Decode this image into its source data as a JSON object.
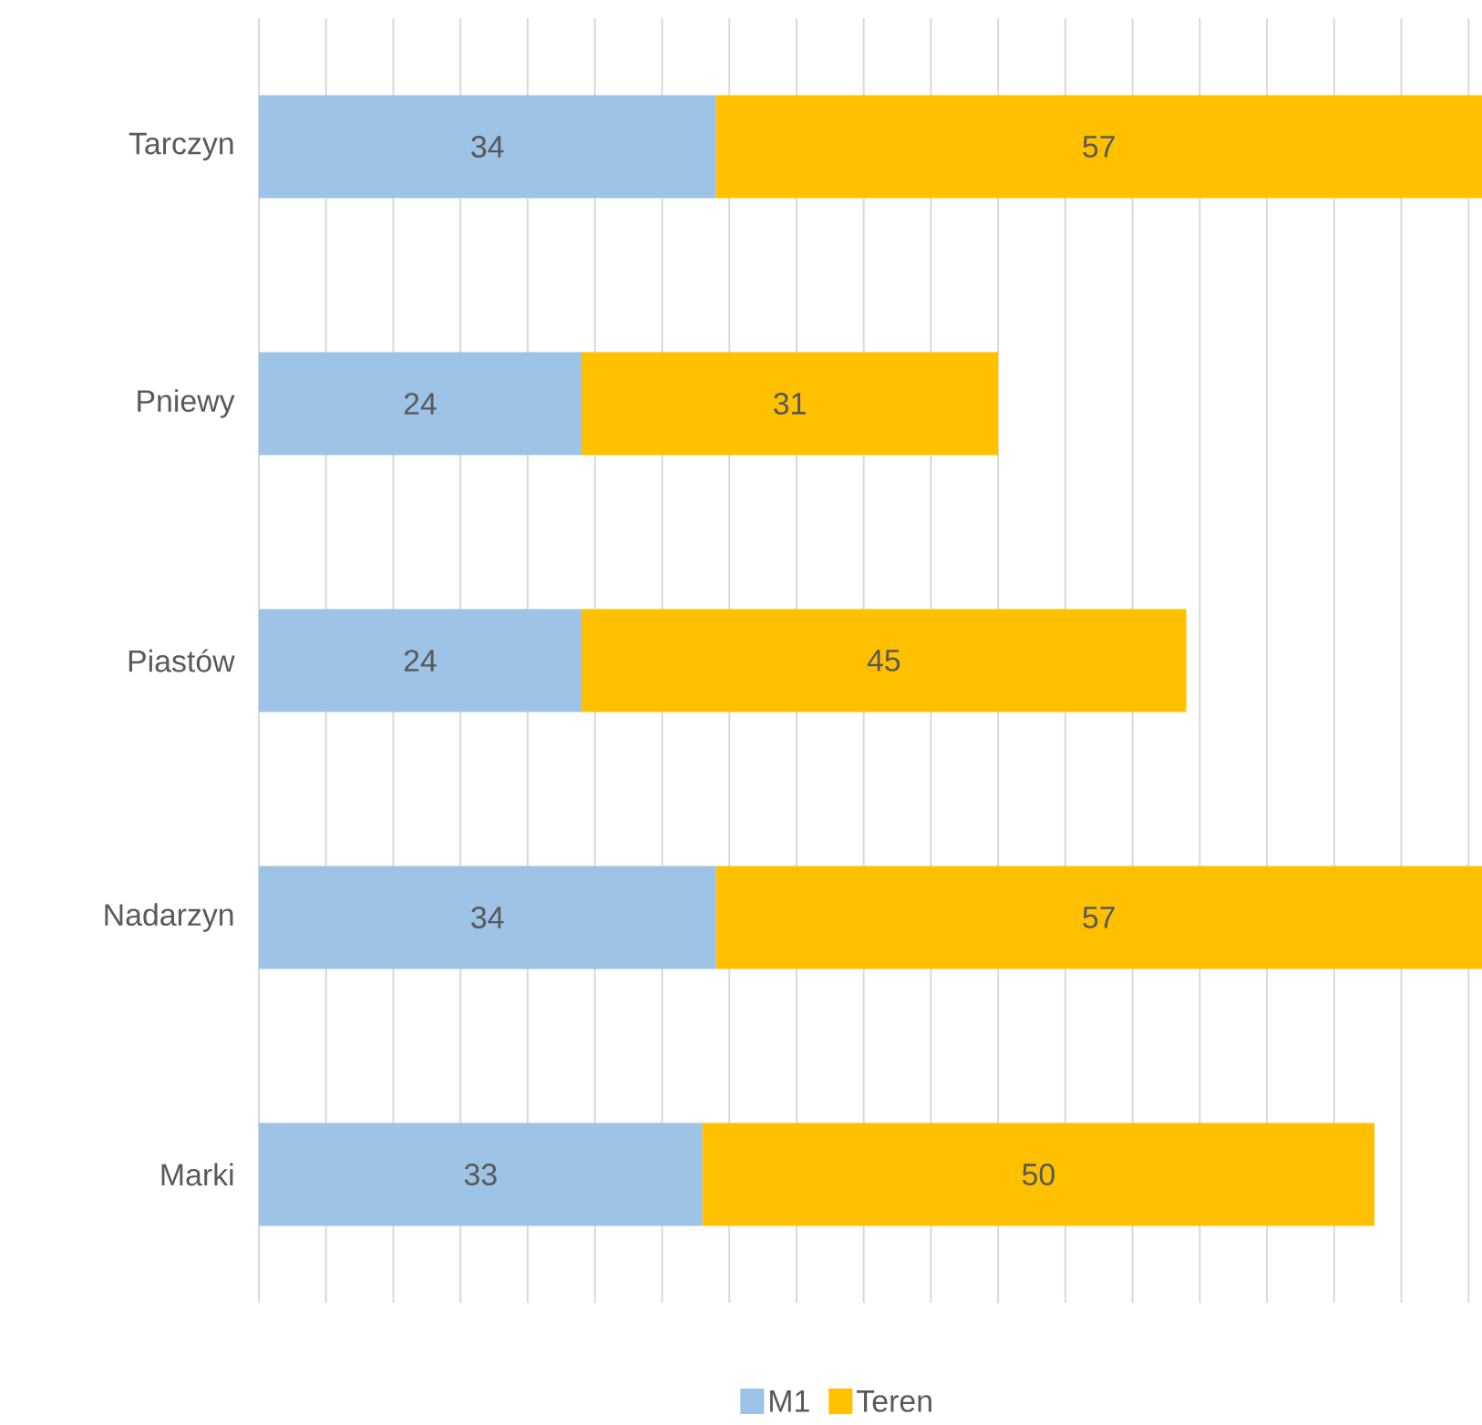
{
  "chart_data": {
    "type": "bar",
    "orientation": "horizontal",
    "stacked": true,
    "categories": [
      "Tarczyn",
      "Pniewy",
      "Piastów",
      "Nadarzyn",
      "Marki"
    ],
    "series": [
      {
        "name": "M1",
        "color": "#9dc3e6",
        "values": [
          34,
          24,
          24,
          34,
          33
        ]
      },
      {
        "name": "Teren",
        "color": "#ffc000",
        "values": [
          57,
          31,
          45,
          57,
          50
        ]
      }
    ],
    "tick_labels": "y",
    "grid": "x",
    "data_labels": true,
    "legend": "bottom"
  }
}
